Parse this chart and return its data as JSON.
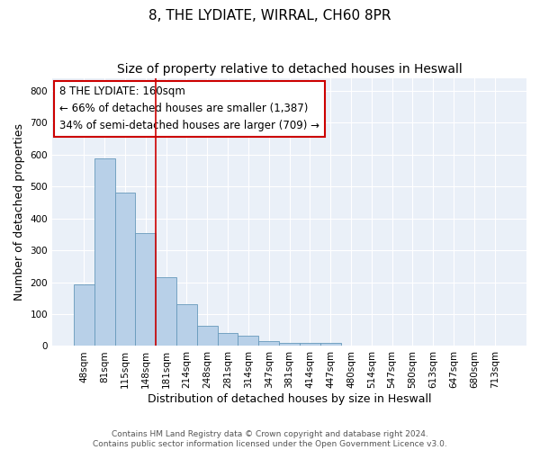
{
  "title1": "8, THE LYDIATE, WIRRAL, CH60 8PR",
  "title2": "Size of property relative to detached houses in Heswall",
  "xlabel": "Distribution of detached houses by size in Heswall",
  "ylabel": "Number of detached properties",
  "categories": [
    "48sqm",
    "81sqm",
    "115sqm",
    "148sqm",
    "181sqm",
    "214sqm",
    "248sqm",
    "281sqm",
    "314sqm",
    "347sqm",
    "381sqm",
    "414sqm",
    "447sqm",
    "480sqm",
    "514sqm",
    "547sqm",
    "580sqm",
    "613sqm",
    "647sqm",
    "680sqm",
    "713sqm"
  ],
  "values": [
    193,
    587,
    481,
    354,
    215,
    131,
    63,
    40,
    33,
    16,
    11,
    10,
    11,
    0,
    0,
    0,
    0,
    0,
    0,
    0,
    0
  ],
  "bar_color": "#b8d0e8",
  "bar_edge_color": "#6699bb",
  "vline_x": 3.5,
  "vline_color": "#cc0000",
  "annotation_text": "8 THE LYDIATE: 160sqm\n← 66% of detached houses are smaller (1,387)\n34% of semi-detached houses are larger (709) →",
  "annotation_box_color": "#ffffff",
  "annotation_box_edge": "#cc0000",
  "ylim": [
    0,
    840
  ],
  "yticks": [
    0,
    100,
    200,
    300,
    400,
    500,
    600,
    700,
    800
  ],
  "background_color": "#eaf0f8",
  "footer_text": "Contains HM Land Registry data © Crown copyright and database right 2024.\nContains public sector information licensed under the Open Government Licence v3.0.",
  "title_fontsize": 11,
  "subtitle_fontsize": 10,
  "xlabel_fontsize": 9,
  "ylabel_fontsize": 9,
  "tick_fontsize": 7.5,
  "annotation_fontsize": 8.5,
  "footer_fontsize": 6.5
}
